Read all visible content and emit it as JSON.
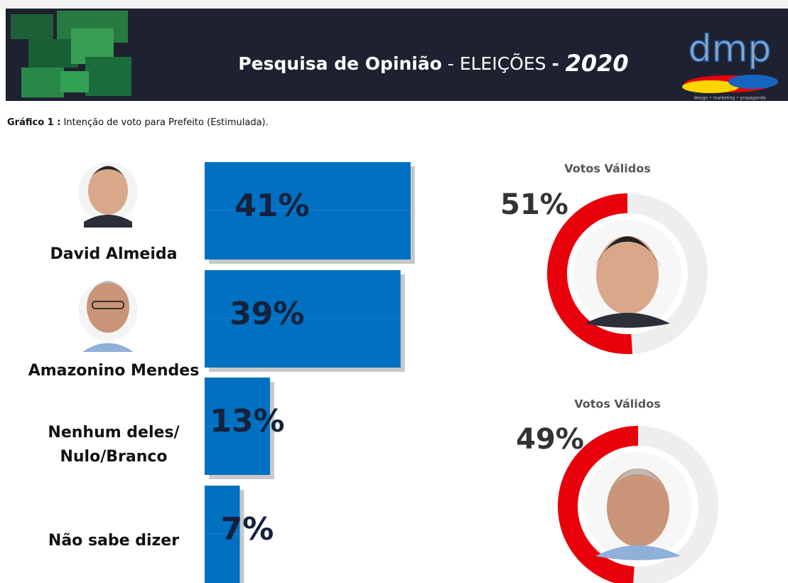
{
  "header": {
    "title_bold": "Pesquisa de Opinião",
    "title_light": " - ELEIÇÕES ",
    "title_dash": "- ",
    "title_year": "2020",
    "logo": "dmp",
    "logo_tagline": "design • marketing • propaganda"
  },
  "caption": {
    "label": "Gráfico 1 :",
    "text": " Intenção de voto para Prefeito  (Estimulada)."
  },
  "chart_data": [
    {
      "type": "bar",
      "categories": [
        "David Almeida",
        "Amazonino Mendes",
        "Nenhum deles/\nNulo/Branco",
        "Não sabe dizer"
      ],
      "values": [
        41,
        39,
        13,
        7
      ],
      "value_labels": [
        "41%",
        "39%",
        "13%",
        "7%"
      ],
      "color": "#0070c0",
      "xlim": [
        0,
        100
      ]
    },
    {
      "type": "donut",
      "title": "Votos Válidos",
      "values": [
        51
      ],
      "value_labels": [
        "51%"
      ],
      "color": "#e8000b",
      "track_color": "#eeeeee",
      "total": 100
    },
    {
      "type": "donut",
      "title": "Votos Válidos",
      "values": [
        49
      ],
      "value_labels": [
        "49%"
      ],
      "color": "#e8000b",
      "track_color": "#eeeeee",
      "total": 100
    }
  ]
}
